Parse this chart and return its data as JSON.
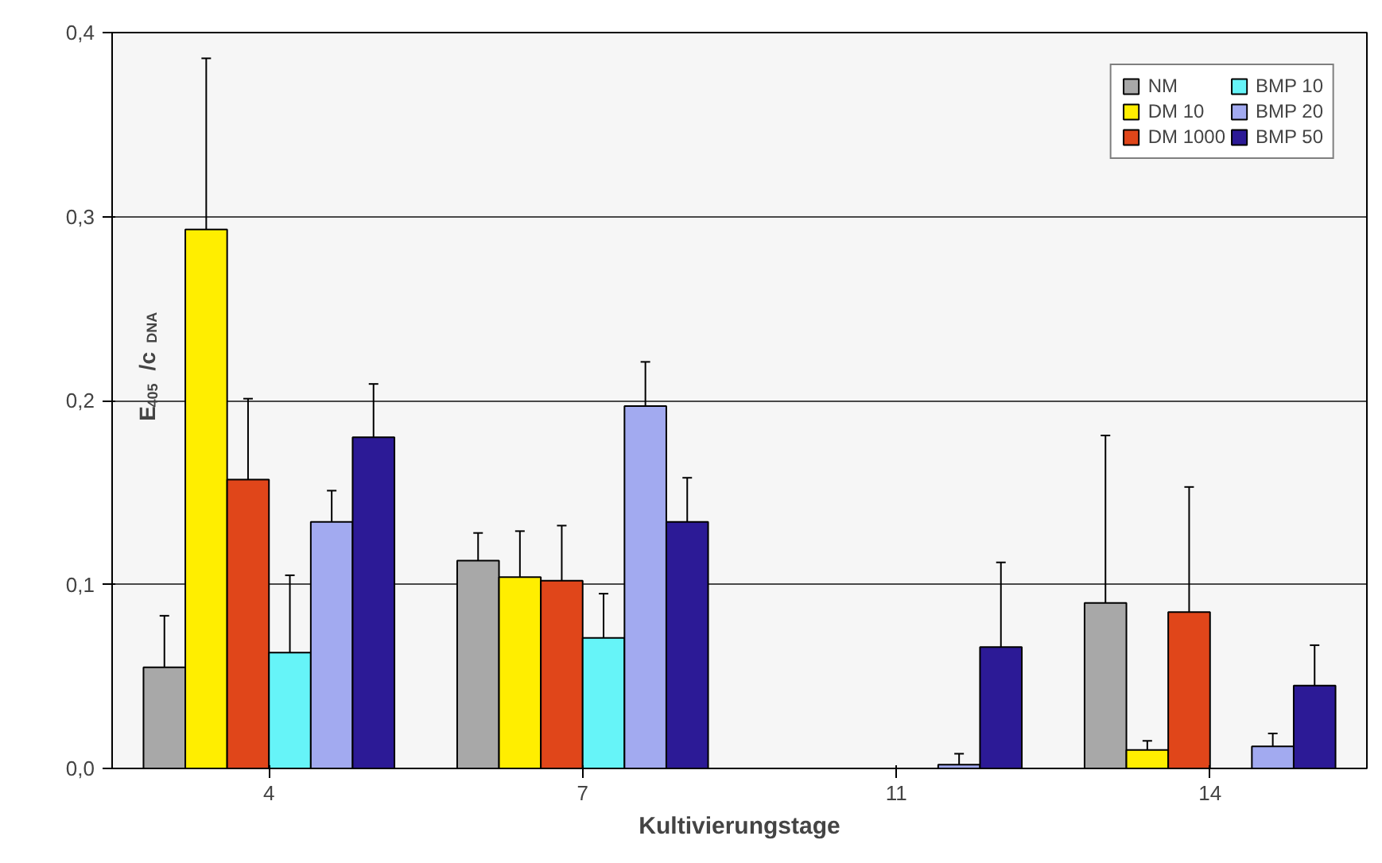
{
  "chart_data": {
    "type": "bar",
    "xlabel": "Kultivierungstage",
    "ylabel": "E$_{405}$ /c$_{DNA}$",
    "categories": [
      "4",
      "7",
      "11",
      "14"
    ],
    "series": [
      {
        "name": "NM",
        "color": "#a8a8a8",
        "values": [
          0.055,
          0.113,
          null,
          0.09
        ],
        "errors": [
          [
            0.055,
            0.083
          ],
          [
            0.113,
            0.128
          ],
          null,
          [
            0.09,
            0.181
          ]
        ]
      },
      {
        "name": "DM 10",
        "color": "#ffee00",
        "values": [
          0.293,
          0.104,
          null,
          0.01
        ],
        "errors": [
          [
            0.293,
            0.386
          ],
          [
            0.104,
            0.129
          ],
          null,
          [
            0.01,
            0.015
          ]
        ]
      },
      {
        "name": "DM 1000",
        "color": "#e0461a",
        "values": [
          0.157,
          0.102,
          null,
          0.085
        ],
        "errors": [
          [
            0.157,
            0.201
          ],
          [
            0.102,
            0.132
          ],
          null,
          [
            0.085,
            0.153
          ]
        ]
      },
      {
        "name": "BMP 10",
        "color": "#66f4f8",
        "values": [
          0.063,
          0.071,
          null,
          null
        ],
        "errors": [
          [
            0.063,
            0.105
          ],
          [
            0.071,
            0.095
          ],
          null,
          null
        ]
      },
      {
        "name": "BMP 20",
        "color": "#a2aaf0",
        "values": [
          0.134,
          0.197,
          0.002,
          0.012
        ],
        "errors": [
          [
            0.134,
            0.151
          ],
          [
            0.197,
            0.221
          ],
          [
            0.002,
            0.008
          ],
          [
            0.012,
            0.019
          ]
        ]
      },
      {
        "name": "BMP 50",
        "color": "#2c1a96",
        "values": [
          0.18,
          0.134,
          0.066,
          0.045
        ],
        "errors": [
          [
            0.18,
            0.209
          ],
          [
            0.134,
            0.158
          ],
          [
            0.066,
            0.112
          ],
          [
            0.045,
            0.067
          ]
        ]
      }
    ],
    "ylim": [
      0,
      0.4
    ],
    "yticks": [
      {
        "value": 0,
        "label": "0,0"
      },
      {
        "value": 0.1,
        "label": "0,1"
      },
      {
        "value": 0.2,
        "label": "0,2"
      },
      {
        "value": 0.3,
        "label": "0,3"
      },
      {
        "value": 0.4,
        "label": "0,4"
      }
    ],
    "grid": "y",
    "legend": "top right"
  }
}
